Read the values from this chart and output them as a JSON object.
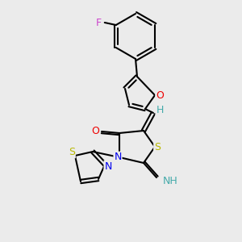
{
  "bg_color": "#ebebeb",
  "atom_colors": {
    "S": "#b8b800",
    "N": "#0000ee",
    "O": "#ee0000",
    "F": "#cc44cc",
    "H": "#44aaaa",
    "C": "#000000"
  },
  "bond_color": "#000000",
  "figsize": [
    3.0,
    3.0
  ],
  "dpi": 100
}
